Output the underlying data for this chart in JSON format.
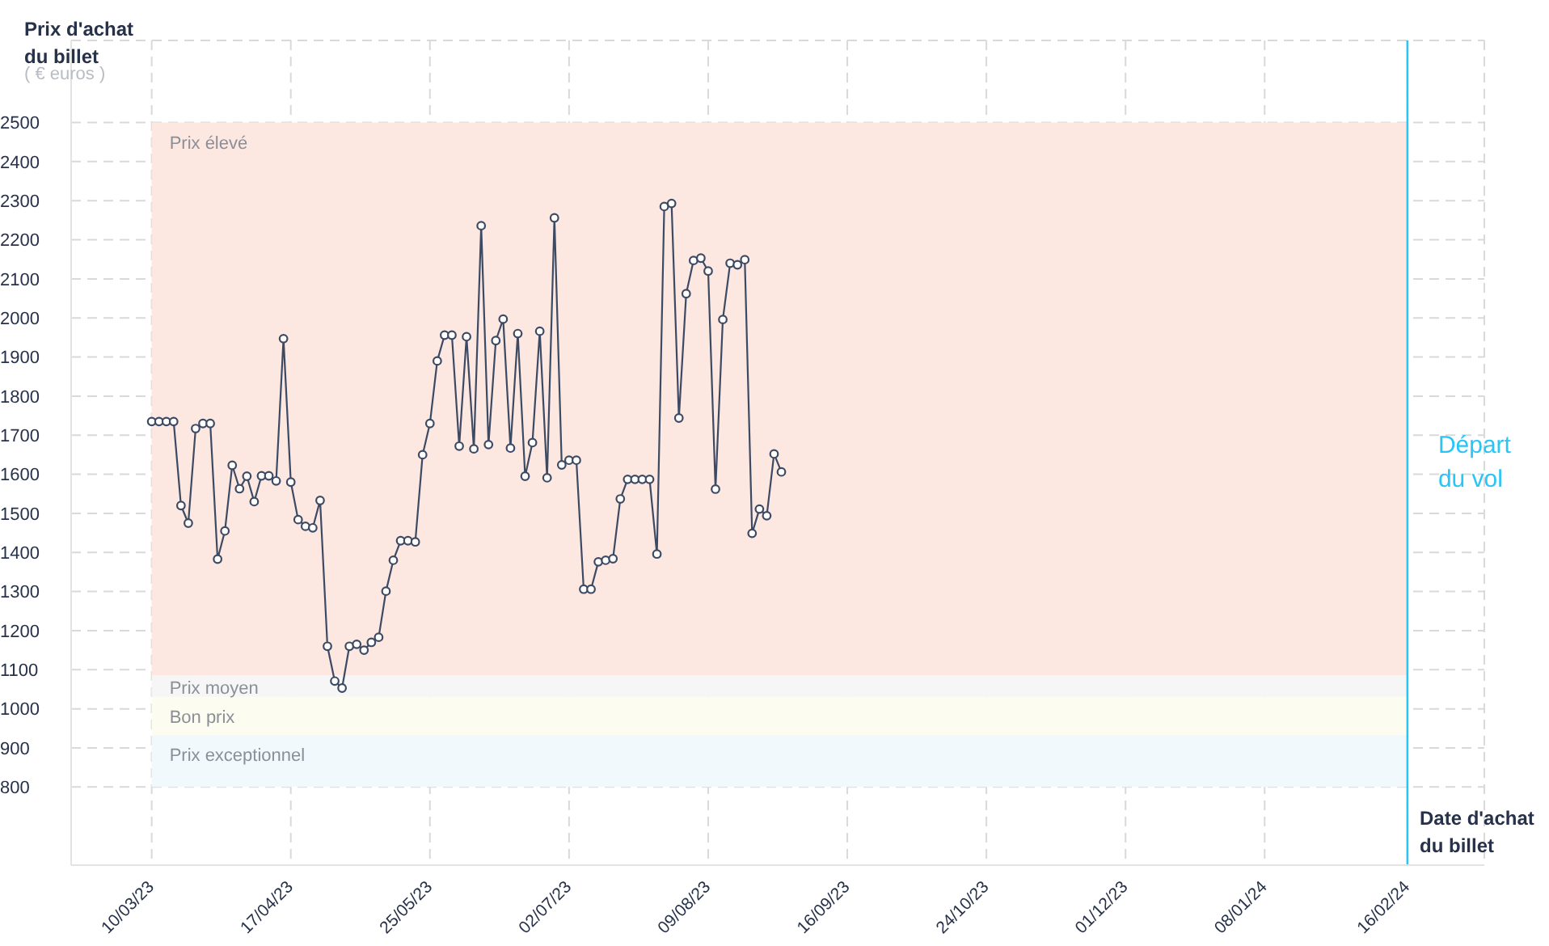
{
  "chart_data": {
    "type": "line",
    "ylabel": "Prix d'achat du billet",
    "xlabel": "Date d'achat du billet",
    "annotations": [
      "( € euros )"
    ],
    "x": [
      "2023-03-10",
      "2023-03-12",
      "2023-03-14",
      "2023-03-16",
      "2023-03-18",
      "2023-03-20",
      "2023-03-22",
      "2023-03-24",
      "2023-03-26",
      "2023-03-28",
      "2023-03-30",
      "2023-04-01",
      "2023-04-03",
      "2023-04-05",
      "2023-04-07",
      "2023-04-09",
      "2023-04-11",
      "2023-04-13",
      "2023-04-15",
      "2023-04-17",
      "2023-04-19",
      "2023-04-21",
      "2023-04-23",
      "2023-04-25",
      "2023-04-27",
      "2023-04-29",
      "2023-05-01",
      "2023-05-03",
      "2023-05-05",
      "2023-05-07",
      "2023-05-09",
      "2023-05-11",
      "2023-05-13",
      "2023-05-15",
      "2023-05-17",
      "2023-05-19",
      "2023-05-21",
      "2023-05-23",
      "2023-05-25",
      "2023-05-27",
      "2023-05-29",
      "2023-05-31",
      "2023-06-02",
      "2023-06-04",
      "2023-06-06",
      "2023-06-08",
      "2023-06-10",
      "2023-06-12",
      "2023-06-14",
      "2023-06-16",
      "2023-06-18",
      "2023-06-20",
      "2023-06-22",
      "2023-06-24",
      "2023-06-26",
      "2023-06-28",
      "2023-06-30",
      "2023-07-02",
      "2023-07-04",
      "2023-07-06",
      "2023-07-08",
      "2023-07-10",
      "2023-07-12",
      "2023-07-14",
      "2023-07-16",
      "2023-07-18",
      "2023-07-20",
      "2023-07-22",
      "2023-07-24",
      "2023-07-26",
      "2023-07-28",
      "2023-07-30",
      "2023-08-01",
      "2023-08-03",
      "2023-08-05",
      "2023-08-07",
      "2023-08-09",
      "2023-08-11",
      "2023-08-13",
      "2023-08-15",
      "2023-08-17",
      "2023-08-19",
      "2023-08-21",
      "2023-08-23",
      "2023-08-25",
      "2023-08-27",
      "2023-08-29"
    ],
    "series": [
      {
        "color": "#3d4a63",
        "values": [
          1735,
          1735,
          1735,
          1735,
          1520,
          1475,
          1717,
          1730,
          1730,
          1383,
          1455,
          1623,
          1563,
          1595,
          1530,
          1596,
          1596,
          1583,
          1947,
          1580,
          1484,
          1467,
          1463,
          1533,
          1160,
          1071,
          1053,
          1160,
          1165,
          1150,
          1170,
          1183,
          1301,
          1380,
          1430,
          1430,
          1427,
          1650,
          1730,
          1890,
          1956,
          1956,
          1672,
          1952,
          1665,
          2236,
          1676,
          1942,
          1997,
          1667,
          1960,
          1595,
          1681,
          1966,
          1591,
          2256,
          1624,
          1636,
          1636,
          1306,
          1306,
          1376,
          1380,
          1384,
          1537,
          1587,
          1587,
          1587,
          1587,
          1396,
          2285,
          2293,
          1744,
          2062,
          2147,
          2153,
          2120,
          1562,
          1996,
          2140,
          2136,
          2149,
          1449,
          1511,
          1494,
          1652,
          1606
        ]
      }
    ],
    "marker": "circle",
    "line_style": "solid",
    "grid": true,
    "legend": false,
    "xlim": [
      "2023-02-16",
      "2024-03-08"
    ],
    "ylim": [
      600,
      2710
    ],
    "xticks": [
      {
        "value": "2023-03-10",
        "label": "10/03/23"
      },
      {
        "value": "2023-04-17",
        "label": "17/04/23"
      },
      {
        "value": "2023-05-25",
        "label": "25/05/23"
      },
      {
        "value": "2023-07-02",
        "label": "02/07/23"
      },
      {
        "value": "2023-08-09",
        "label": "09/08/23"
      },
      {
        "value": "2023-09-16",
        "label": "16/09/23"
      },
      {
        "value": "2023-10-24",
        "label": "24/10/23"
      },
      {
        "value": "2023-12-01",
        "label": "01/12/23"
      },
      {
        "value": "2024-01-08",
        "label": "08/01/24"
      },
      {
        "value": "2024-02-16",
        "label": "16/02/24"
      }
    ],
    "yticks": [
      800,
      900,
      1000,
      1100,
      1200,
      1300,
      1400,
      1500,
      1600,
      1700,
      1800,
      1900,
      2000,
      2100,
      2200,
      2300,
      2400,
      2500
    ],
    "bands": [
      {
        "axis": "y",
        "from": 1086,
        "to": 2500,
        "label": "Prix élevé",
        "color": "#fde7e1"
      },
      {
        "axis": "y",
        "from": 1031,
        "to": 1086,
        "label": "Prix moyen",
        "color": "#f6f6f6"
      },
      {
        "axis": "y",
        "from": 933,
        "to": 1031,
        "label": "Bon prix",
        "color": "#fcfcf1"
      },
      {
        "axis": "y",
        "from": 800,
        "to": 933,
        "label": "Prix exceptionnel",
        "color": "#f1f9fc"
      }
    ],
    "ref_lines": [
      {
        "axis": "x",
        "value": "2024-02-16",
        "label": "Départ du vol",
        "color": "#29c5f6",
        "line_style": "solid"
      }
    ]
  }
}
